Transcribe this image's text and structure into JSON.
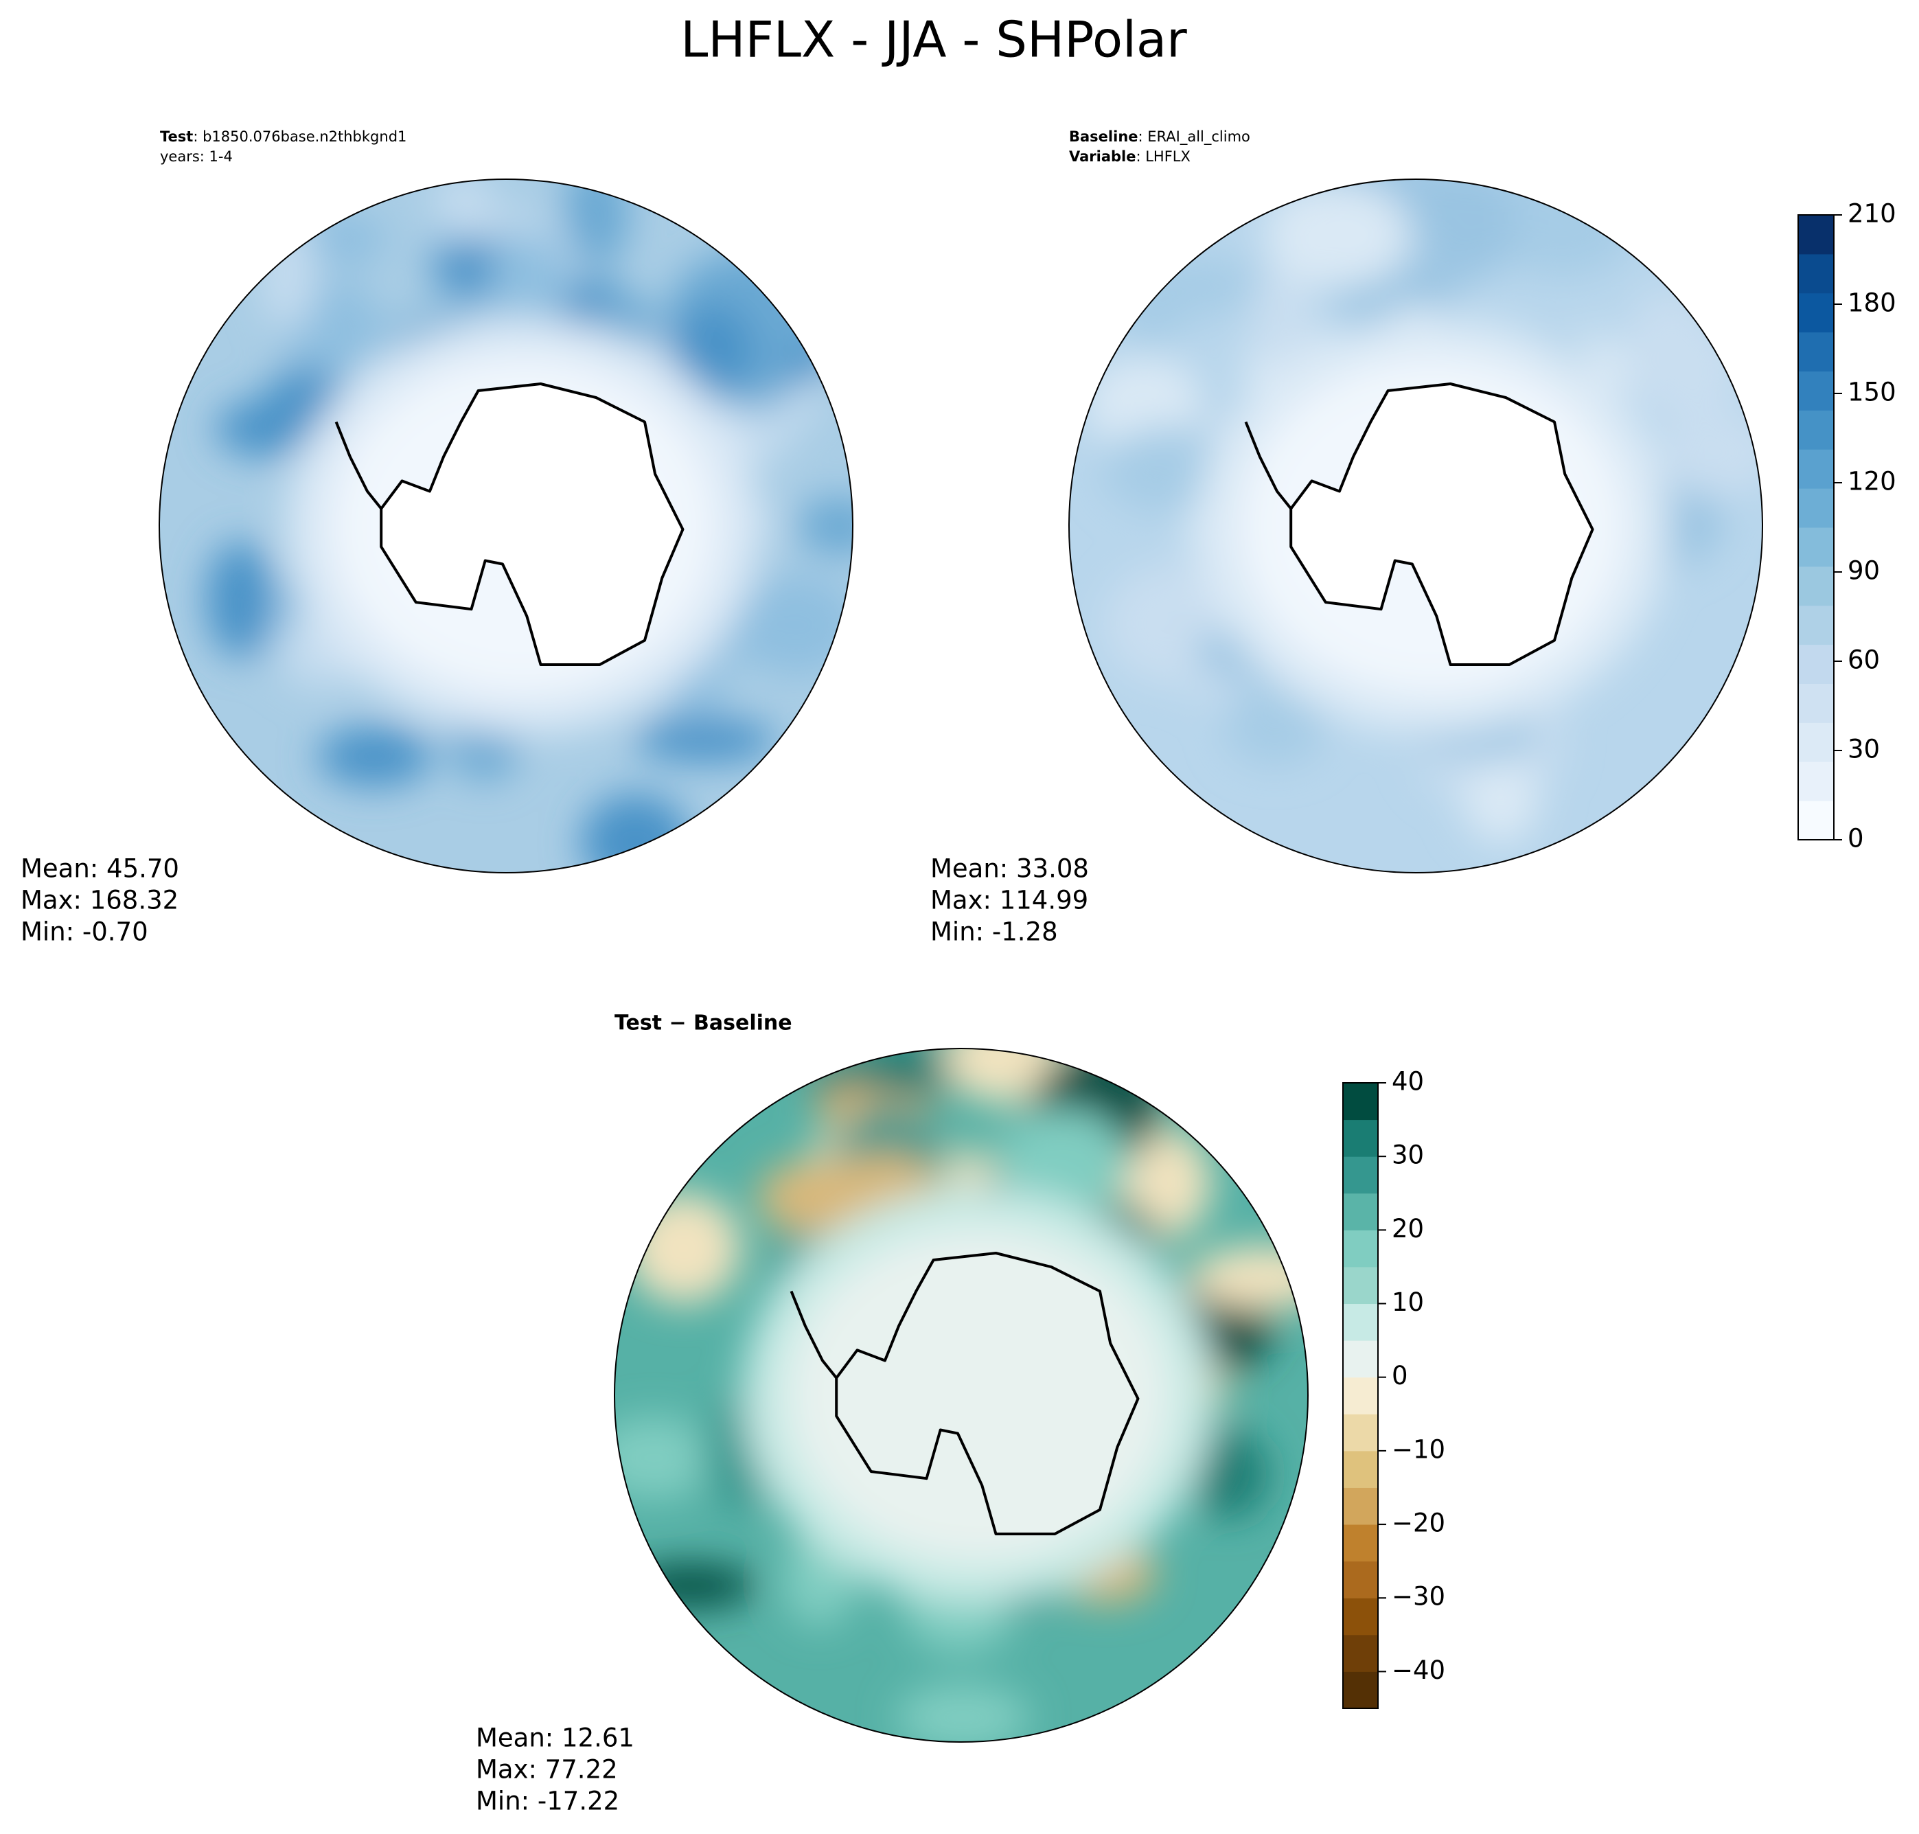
{
  "title": "LHFLX - JJA - SHPolar",
  "panels": [
    {
      "header": [
        {
          "key": "Test",
          "text": ": b1850.076base.n2thbkgnd1"
        },
        {
          "key": null,
          "text": "years: 1-4"
        }
      ],
      "stats": [
        "Mean: 45.70",
        "Max: 168.32",
        "Min: -0.70"
      ]
    },
    {
      "header": [
        {
          "key": "Baseline",
          "text": ": ERAI_all_climo"
        },
        {
          "key": "Variable",
          "text": ": LHFLX"
        }
      ],
      "stats": [
        "Mean: 33.08",
        "Max: 114.99",
        "Min: -1.28"
      ]
    },
    {
      "title": "Test − Baseline",
      "stats": [
        "Mean: 12.61",
        "Max: 77.22",
        "Min: -17.22"
      ]
    }
  ],
  "colorbars": [
    {
      "lim": [
        0,
        210
      ],
      "ticks": [
        0,
        30,
        60,
        90,
        120,
        150,
        180,
        210
      ],
      "colors": [
        "#f7fbff",
        "#e8f1fa",
        "#dceaf6",
        "#cfe1f2",
        "#c2d9ee",
        "#afd1e7",
        "#9bc8e0",
        "#84bcdb",
        "#6daed5",
        "#5aa1cf",
        "#4592c6",
        "#3281bd",
        "#1f6eb0",
        "#0c58a0",
        "#0a4b8f",
        "#08306b"
      ]
    },
    {
      "lim": [
        -45,
        40
      ],
      "ticks": [
        {
          "value": -40,
          "label": "−40"
        },
        {
          "value": -30,
          "label": "−30"
        },
        {
          "value": -20,
          "label": "−20"
        },
        {
          "value": -10,
          "label": "−10"
        },
        0,
        10,
        20,
        30,
        40
      ],
      "colors": [
        "#543005",
        "#6f3f08",
        "#8c510a",
        "#ab6a1e",
        "#bf812d",
        "#d2a65c",
        "#dfc27d",
        "#ecd9a8",
        "#f6ecd2",
        "#e8f2ef",
        "#c7eae5",
        "#9ad6cb",
        "#80cdc1",
        "#5ab4a8",
        "#35978f",
        "#1a7d73",
        "#014c40"
      ]
    }
  ]
}
